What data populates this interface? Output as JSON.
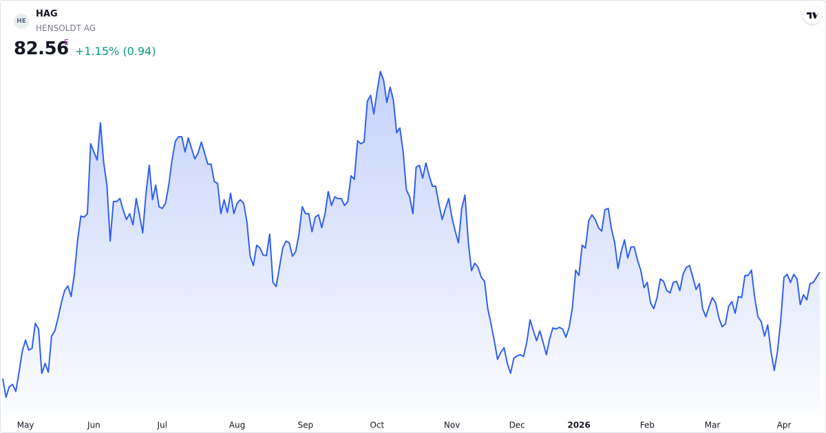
{
  "header": {
    "logo_text": "HE",
    "ticker": "HAG",
    "name": "HENSOLDT AG",
    "price": "82.56",
    "price_flag": "E",
    "change": "+1.15% (0.94)"
  },
  "chart_data": {
    "type": "area",
    "color": "#2f5ff0",
    "categories": [
      null,
      null,
      null,
      null,
      null,
      null,
      null,
      "May",
      null,
      null,
      null,
      null,
      null,
      null,
      null,
      null,
      null,
      null,
      null,
      null,
      null,
      null,
      null,
      null,
      null,
      null,
      null,
      null,
      "Jun",
      null,
      null,
      null,
      null,
      null,
      null,
      null,
      null,
      null,
      null,
      null,
      null,
      null,
      null,
      null,
      null,
      null,
      null,
      null,
      null,
      "Jul",
      null,
      null,
      null,
      null,
      null,
      null,
      null,
      null,
      null,
      null,
      null,
      null,
      null,
      null,
      null,
      null,
      null,
      null,
      null,
      null,
      null,
      null,
      "Aug",
      null,
      null,
      null,
      null,
      null,
      null,
      null,
      null,
      null,
      null,
      null,
      null,
      null,
      null,
      null,
      null,
      null,
      null,
      null,
      null,
      "Sep",
      null,
      null,
      null,
      null,
      null,
      null,
      null,
      null,
      null,
      null,
      null,
      null,
      null,
      null,
      null,
      null,
      null,
      null,
      null,
      null,
      null,
      "Oct",
      null,
      null,
      null,
      null,
      null,
      null,
      null,
      null,
      null,
      null,
      null,
      null,
      null,
      null,
      null,
      null,
      null,
      null,
      null,
      null,
      null,
      null,
      "Nov",
      null,
      null,
      null,
      null,
      null,
      null,
      null,
      null,
      null,
      null,
      null,
      null,
      null,
      null,
      null,
      null,
      null,
      null,
      null,
      "Dec",
      null,
      null,
      null,
      null,
      null,
      null,
      null,
      null,
      null,
      null,
      null,
      null,
      null,
      null,
      null,
      null,
      null,
      null,
      "2026",
      null,
      null,
      null,
      null,
      null,
      null,
      null,
      null,
      null,
      null,
      null,
      null,
      null,
      null,
      null,
      null,
      null,
      null,
      null,
      null,
      "Feb",
      null,
      null,
      null,
      null,
      null,
      null,
      null,
      null,
      null,
      null,
      null,
      null,
      null,
      null,
      null,
      null,
      null,
      null,
      null,
      "Mar",
      null,
      null,
      null,
      null,
      null,
      null,
      null,
      null,
      null,
      null,
      null,
      null,
      null,
      null,
      null,
      null,
      null,
      null,
      null,
      null,
      null,
      "Apr",
      null,
      null,
      null,
      null,
      null,
      null,
      null,
      null,
      null,
      null,
      null
    ],
    "values": [
      64.3,
      61.1,
      62.9,
      63.3,
      62.1,
      65.4,
      69.0,
      70.9,
      69.2,
      69.5,
      73.8,
      72.8,
      65.2,
      66.9,
      65.4,
      71.6,
      72.5,
      74.7,
      77.3,
      79.4,
      80.2,
      78.4,
      82.2,
      88.1,
      92.2,
      92.0,
      92.6,
      104.6,
      103.2,
      101.8,
      108.2,
      101.4,
      97.5,
      87.9,
      94.7,
      94.7,
      95.2,
      93.2,
      91.6,
      92.6,
      90.7,
      95.2,
      92.4,
      89.3,
      96.1,
      100.9,
      95.0,
      97.5,
      93.8,
      93.5,
      94.4,
      97.5,
      101.8,
      105.0,
      105.8,
      105.8,
      103.2,
      105.6,
      103.8,
      102.0,
      103.0,
      104.9,
      103.0,
      101.1,
      101.1,
      98.1,
      97.8,
      92.6,
      95.0,
      92.8,
      96.1,
      92.6,
      94.4,
      95.0,
      94.4,
      91.2,
      85.3,
      83.7,
      87.2,
      86.7,
      85.5,
      85.4,
      89.1,
      80.8,
      80.1,
      83.4,
      86.7,
      87.9,
      87.6,
      85.3,
      86.1,
      89.1,
      93.8,
      92.6,
      92.6,
      89.5,
      92.0,
      92.4,
      90.2,
      92.6,
      96.4,
      94.0,
      95.5,
      95.2,
      95.2,
      94.0,
      94.7,
      99.1,
      98.5,
      105.1,
      104.6,
      104.9,
      111.9,
      112.9,
      109.7,
      113.6,
      117.0,
      115.5,
      111.7,
      114.3,
      112.1,
      106.5,
      107.3,
      103.2,
      96.7,
      95.5,
      92.6,
      100.6,
      100.9,
      98.7,
      101.3,
      99.1,
      97.3,
      97.3,
      94.2,
      91.6,
      93.5,
      95.2,
      91.9,
      89.6,
      87.6,
      93.5,
      95.8,
      87.9,
      82.8,
      84.1,
      83.4,
      81.7,
      81.0,
      76.3,
      73.7,
      70.8,
      67.6,
      68.8,
      69.6,
      66.9,
      65.2,
      67.8,
      68.2,
      68.4,
      68.1,
      70.6,
      74.4,
      72.5,
      70.8,
      72.5,
      70.5,
      68.4,
      71.1,
      73.0,
      72.8,
      73.1,
      72.8,
      71.4,
      73.1,
      76.5,
      82.9,
      82.0,
      87.2,
      86.7,
      91.4,
      92.4,
      91.6,
      90.2,
      89.6,
      93.3,
      93.5,
      90.0,
      87.6,
      83.2,
      86.1,
      88.1,
      85.0,
      86.9,
      86.9,
      84.6,
      82.9,
      79.9,
      80.8,
      77.3,
      76.3,
      78.2,
      81.4,
      81.0,
      79.4,
      79.0,
      80.8,
      81.0,
      79.4,
      82.2,
      83.4,
      83.7,
      81.7,
      79.6,
      80.6,
      76.3,
      74.9,
      76.7,
      78.2,
      77.3,
      74.7,
      73.2,
      73.7,
      76.7,
      77.5,
      75.5,
      78.4,
      78.2,
      82.0,
      82.0,
      82.9,
      78.2,
      74.9,
      74.1,
      71.6,
      73.5,
      69.0,
      65.7,
      69.0,
      74.3,
      81.7,
      82.2,
      80.8,
      82.2,
      81.4,
      77.0,
      78.7,
      77.8,
      80.6,
      80.8,
      81.7,
      82.56
    ]
  }
}
